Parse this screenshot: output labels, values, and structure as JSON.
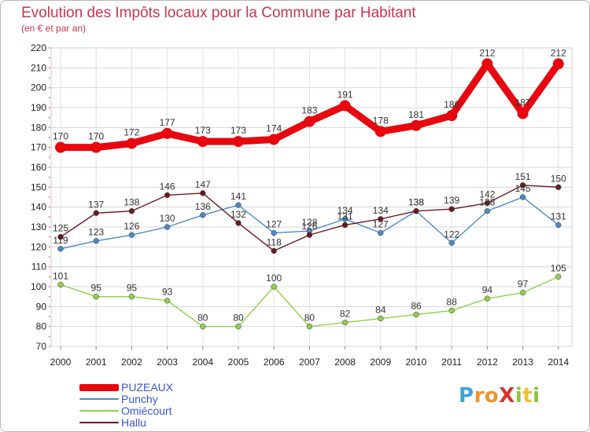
{
  "title": "Evolution des Impôts locaux pour la Commune par Habitant",
  "subtitle": "(en € et par an)",
  "logo_text": "ProXiti",
  "chart_data": {
    "type": "line",
    "title": "Evolution des Impôts locaux pour la Commune par Habitant",
    "subtitle": "(en € et par an)",
    "xlabel": "",
    "ylabel": "",
    "x": [
      "2000",
      "2001",
      "2002",
      "2003",
      "2004",
      "2005",
      "2006",
      "2007",
      "2008",
      "2009",
      "2010",
      "2011",
      "2012",
      "2013",
      "2014"
    ],
    "ylim": [
      70,
      220
    ],
    "y_ticks": [
      70,
      80,
      90,
      100,
      110,
      120,
      130,
      140,
      150,
      160,
      170,
      180,
      190,
      200,
      210,
      220
    ],
    "grid": true,
    "legend_position": "bottom-left",
    "series": [
      {
        "name": "PUZEAUX",
        "color": "#e8070e",
        "values": [
          170,
          170,
          172,
          177,
          173,
          173,
          174,
          183,
          191,
          178,
          181,
          186,
          212,
          187,
          212
        ]
      },
      {
        "name": "Punchy",
        "color": "#4a8ac6",
        "values": [
          119,
          123,
          126,
          130,
          136,
          141,
          127,
          128,
          134,
          127,
          138,
          122,
          138,
          145,
          131
        ]
      },
      {
        "name": "Omiécourt",
        "color": "#8fd04a",
        "values": [
          101,
          95,
          95,
          93,
          80,
          80,
          100,
          80,
          82,
          84,
          86,
          88,
          94,
          97,
          105
        ]
      },
      {
        "name": "Hallu",
        "color": "#6a1a22",
        "values": [
          125,
          137,
          138,
          146,
          147,
          132,
          118,
          126,
          131,
          134,
          138,
          139,
          142,
          151,
          150
        ]
      }
    ]
  }
}
